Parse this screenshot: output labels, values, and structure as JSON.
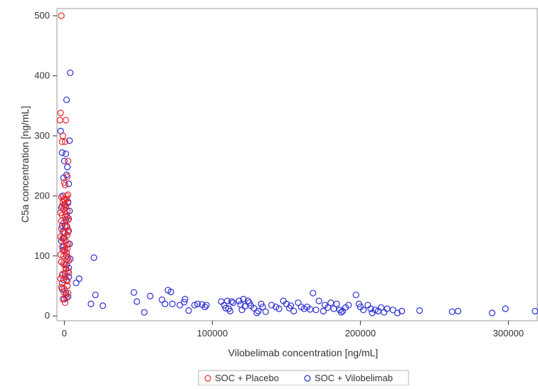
{
  "chart_data": {
    "type": "scatter",
    "title": "",
    "xlabel": "Vilobelimab concentration [ng/mL]",
    "ylabel": "C5a concentration [ng/mL]",
    "xlim": [
      -5000,
      320000
    ],
    "ylim": [
      -8,
      512
    ],
    "x_ticks": [
      0,
      100000,
      200000,
      300000
    ],
    "x_tick_labels": [
      "0",
      "100000",
      "200000",
      "300000"
    ],
    "y_ticks": [
      0,
      100,
      200,
      300,
      400,
      500
    ],
    "y_tick_labels": [
      "0",
      "100",
      "200",
      "300",
      "400",
      "500"
    ],
    "grid": false,
    "legend_position": "bottom-center",
    "marker": "open-circle",
    "series": [
      {
        "name": "SOC + Placebo",
        "color": "#e8272d",
        "points": [
          [
            -2000,
            500
          ],
          [
            -2500,
            338
          ],
          [
            -3000,
            326
          ],
          [
            1000,
            326
          ],
          [
            -1000,
            300
          ],
          [
            500,
            290
          ],
          [
            -1500,
            290
          ],
          [
            2500,
            258
          ],
          [
            2000,
            232
          ],
          [
            0,
            222
          ],
          [
            500,
            218
          ],
          [
            -2000,
            198
          ],
          [
            -500,
            195
          ],
          [
            1500,
            200
          ],
          [
            2500,
            202
          ],
          [
            -1000,
            190
          ],
          [
            0,
            185
          ],
          [
            1000,
            180
          ],
          [
            2000,
            175
          ],
          [
            -1500,
            168
          ],
          [
            500,
            165
          ],
          [
            2500,
            160
          ],
          [
            -500,
            155
          ],
          [
            1500,
            150
          ],
          [
            -2000,
            145
          ],
          [
            0,
            140
          ],
          [
            2000,
            135
          ],
          [
            -1000,
            130
          ],
          [
            1000,
            125
          ],
          [
            2500,
            120
          ],
          [
            -1500,
            115
          ],
          [
            500,
            110
          ],
          [
            1500,
            105
          ],
          [
            -500,
            100
          ],
          [
            2000,
            95
          ],
          [
            -2000,
            90
          ],
          [
            0,
            85
          ],
          [
            1000,
            80
          ],
          [
            2500,
            75
          ],
          [
            -1000,
            70
          ],
          [
            500,
            65
          ],
          [
            1500,
            60
          ],
          [
            -1500,
            55
          ],
          [
            2000,
            50
          ],
          [
            0,
            45
          ],
          [
            -500,
            40
          ],
          [
            1000,
            35
          ],
          [
            -1000,
            28
          ],
          [
            500,
            22
          ],
          [
            1500,
            30
          ],
          [
            2500,
            38
          ],
          [
            -2000,
            48
          ],
          [
            2000,
            58
          ],
          [
            -1500,
            68
          ],
          [
            1000,
            78
          ],
          [
            -500,
            88
          ],
          [
            2500,
            98
          ],
          [
            0,
            108
          ],
          [
            1500,
            118
          ],
          [
            -1000,
            128
          ],
          [
            500,
            138
          ],
          [
            2000,
            148
          ],
          [
            -2000,
            158
          ],
          [
            1000,
            170
          ],
          [
            -500,
            178
          ],
          [
            2500,
            188
          ],
          [
            1500,
            195
          ],
          [
            0,
            193
          ],
          [
            -1500,
            183
          ],
          [
            2000,
            112
          ],
          [
            -2500,
            102
          ],
          [
            3000,
            92
          ],
          [
            -2500,
            62
          ],
          [
            3000,
            72
          ],
          [
            -2500,
            132
          ],
          [
            3000,
            142
          ],
          [
            -2500,
            172
          ],
          [
            3000,
            162
          ]
        ]
      },
      {
        "name": "SOC + Vilobelimab",
        "color": "#2b2fd0",
        "points": [
          [
            4000,
            405
          ],
          [
            1500,
            360
          ],
          [
            -2500,
            308
          ],
          [
            3500,
            292
          ],
          [
            -1500,
            272
          ],
          [
            1000,
            270
          ],
          [
            0,
            258
          ],
          [
            2000,
            248
          ],
          [
            1500,
            235
          ],
          [
            -500,
            230
          ],
          [
            3000,
            220
          ],
          [
            -1000,
            200
          ],
          [
            2500,
            190
          ],
          [
            500,
            185
          ],
          [
            -2000,
            180
          ],
          [
            3500,
            175
          ],
          [
            1000,
            160
          ],
          [
            -1500,
            150
          ],
          [
            2500,
            140
          ],
          [
            0,
            130
          ],
          [
            3500,
            120
          ],
          [
            -1000,
            110
          ],
          [
            1500,
            100
          ],
          [
            -2000,
            90
          ],
          [
            3000,
            80
          ],
          [
            500,
            70
          ],
          [
            -500,
            60
          ],
          [
            2000,
            50
          ],
          [
            -1500,
            45
          ],
          [
            1000,
            38
          ],
          [
            2500,
            32
          ],
          [
            0,
            28
          ],
          [
            4000,
            95
          ],
          [
            3000,
            65
          ],
          [
            -2000,
            125
          ],
          [
            1500,
            85
          ],
          [
            -1000,
            140
          ],
          [
            2000,
            165
          ],
          [
            500,
            150
          ],
          [
            -500,
            115
          ],
          [
            8000,
            55
          ],
          [
            10000,
            62
          ],
          [
            20000,
            97
          ],
          [
            21000,
            35
          ],
          [
            18000,
            20
          ],
          [
            26000,
            17
          ],
          [
            47000,
            39
          ],
          [
            49000,
            24
          ],
          [
            54000,
            6
          ],
          [
            58000,
            33
          ],
          [
            66000,
            27
          ],
          [
            68000,
            20
          ],
          [
            70000,
            43
          ],
          [
            72000,
            40
          ],
          [
            73000,
            20
          ],
          [
            78000,
            18
          ],
          [
            81000,
            23
          ],
          [
            81500,
            28
          ],
          [
            84000,
            9
          ],
          [
            88000,
            18
          ],
          [
            90000,
            20
          ],
          [
            93000,
            19
          ],
          [
            95000,
            15
          ],
          [
            96000,
            18
          ],
          [
            106000,
            24
          ],
          [
            108000,
            18
          ],
          [
            109000,
            13
          ],
          [
            110000,
            25
          ],
          [
            111000,
            12
          ],
          [
            112000,
            8
          ],
          [
            113000,
            24
          ],
          [
            114000,
            22
          ],
          [
            118000,
            25
          ],
          [
            119000,
            19
          ],
          [
            120000,
            10
          ],
          [
            121000,
            28
          ],
          [
            122000,
            16
          ],
          [
            124000,
            25
          ],
          [
            125000,
            22
          ],
          [
            126000,
            17
          ],
          [
            128000,
            13
          ],
          [
            130000,
            5
          ],
          [
            131000,
            8
          ],
          [
            133000,
            20
          ],
          [
            134000,
            15
          ],
          [
            136000,
            7
          ],
          [
            140000,
            18
          ],
          [
            143000,
            15
          ],
          [
            145000,
            12
          ],
          [
            148000,
            25
          ],
          [
            150000,
            20
          ],
          [
            152000,
            13
          ],
          [
            153000,
            17
          ],
          [
            155000,
            8
          ],
          [
            158000,
            22
          ],
          [
            160000,
            15
          ],
          [
            162000,
            12
          ],
          [
            164000,
            15
          ],
          [
            166000,
            11
          ],
          [
            168000,
            38
          ],
          [
            170000,
            10
          ],
          [
            172000,
            25
          ],
          [
            175000,
            8
          ],
          [
            176000,
            18
          ],
          [
            178000,
            14
          ],
          [
            180000,
            22
          ],
          [
            182000,
            12
          ],
          [
            184000,
            20
          ],
          [
            186000,
            10
          ],
          [
            187000,
            6
          ],
          [
            188000,
            8
          ],
          [
            190000,
            14
          ],
          [
            192000,
            18
          ],
          [
            197000,
            35
          ],
          [
            199000,
            20
          ],
          [
            200000,
            15
          ],
          [
            202000,
            10
          ],
          [
            205000,
            18
          ],
          [
            207000,
            12
          ],
          [
            208000,
            5
          ],
          [
            210000,
            10
          ],
          [
            212000,
            8
          ],
          [
            214000,
            14
          ],
          [
            216000,
            6
          ],
          [
            218000,
            12
          ],
          [
            222000,
            10
          ],
          [
            225000,
            5
          ],
          [
            228000,
            8
          ],
          [
            240000,
            9
          ],
          [
            262000,
            7
          ],
          [
            266000,
            8
          ],
          [
            289000,
            5
          ],
          [
            298000,
            12
          ],
          [
            318000,
            8
          ]
        ]
      }
    ]
  }
}
